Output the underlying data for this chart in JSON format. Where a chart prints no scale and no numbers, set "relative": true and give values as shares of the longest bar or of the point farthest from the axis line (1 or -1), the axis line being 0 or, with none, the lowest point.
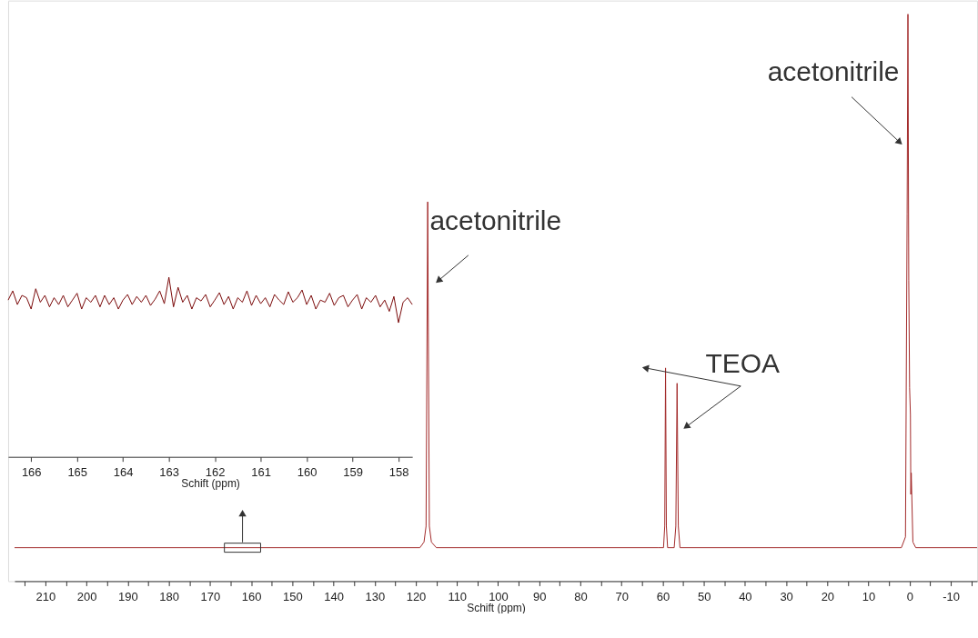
{
  "chart_data": [
    {
      "type": "line",
      "relative": true,
      "xlabel": "Schift (ppm)",
      "color": "#a32a2a",
      "x": [
        217.5,
        119.0,
        118.0,
        117.5,
        117.1,
        116.7,
        116.2,
        115.0,
        61.0,
        59.8,
        59.5,
        59.3,
        59.1,
        58.8,
        57.2,
        56.8,
        56.5,
        56.2,
        55.8,
        2.0,
        1.0,
        0.6,
        0.4,
        0.2,
        0.0,
        -0.2,
        -0.3,
        -0.4,
        -0.8,
        -1.5,
        -16.4
      ],
      "values": [
        0.059,
        0.059,
        0.069,
        0.097,
        0.669,
        0.097,
        0.069,
        0.059,
        0.059,
        0.059,
        0.097,
        0.376,
        0.097,
        0.059,
        0.059,
        0.097,
        0.349,
        0.097,
        0.059,
        0.059,
        0.078,
        0.648,
        1.0,
        0.53,
        0.341,
        0.294,
        0.153,
        0.191,
        0.069,
        0.059,
        0.059
      ],
      "xlim": [
        217.5,
        -16.4
      ],
      "xticks": [
        {
          "value": 215,
          "label": null
        },
        210,
        {
          "value": 205,
          "label": null
        },
        200,
        {
          "value": 195,
          "label": null
        },
        190,
        {
          "value": 185,
          "label": null
        },
        180,
        {
          "value": 175,
          "label": null
        },
        170,
        {
          "value": 165,
          "label": null
        },
        160,
        {
          "value": 155,
          "label": null
        },
        150,
        {
          "value": 145,
          "label": null
        },
        140,
        {
          "value": 135,
          "label": null
        },
        130,
        {
          "value": 125,
          "label": null
        },
        120,
        {
          "value": 115,
          "label": null
        },
        110,
        {
          "value": 105,
          "label": null
        },
        100,
        {
          "value": 95,
          "label": null
        },
        90,
        {
          "value": 85,
          "label": null
        },
        80,
        {
          "value": 75,
          "label": null
        },
        70,
        {
          "value": 65,
          "label": null
        },
        60,
        {
          "value": 55,
          "label": null
        },
        50,
        {
          "value": 45,
          "label": null
        },
        40,
        {
          "value": 35,
          "label": null
        },
        30,
        {
          "value": 25,
          "label": null
        },
        20,
        {
          "value": 15,
          "label": null
        },
        10,
        {
          "value": 5,
          "label": null
        },
        0,
        {
          "value": -5,
          "label": null
        },
        -10,
        {
          "value": -15,
          "label": null
        }
      ],
      "annotations": [
        {
          "text": "acetonitrile",
          "x": 114.5,
          "y": 0.53
        },
        {
          "text": "TEOA",
          "x": 64.2,
          "y": 0.376
        },
        {
          "text": "acetonitrile",
          "x": 2.4,
          "y": 0.774
        }
      ]
    },
    {
      "type": "line",
      "relative": true,
      "xlabel": "Schift (ppm)",
      "color": "#7a0a0a",
      "x": [
        166.5,
        166.4,
        166.3,
        166.2,
        166.1,
        166.0,
        165.9,
        165.8,
        165.7,
        165.6,
        165.5,
        165.4,
        165.3,
        165.2,
        165.1,
        165.0,
        164.9,
        164.8,
        164.7,
        164.6,
        164.5,
        164.4,
        164.3,
        164.2,
        164.1,
        164.0,
        163.9,
        163.8,
        163.7,
        163.6,
        163.5,
        163.4,
        163.3,
        163.2,
        163.1,
        163.0,
        162.9,
        162.8,
        162.7,
        162.6,
        162.5,
        162.4,
        162.3,
        162.2,
        162.1,
        162.0,
        161.9,
        161.8,
        161.7,
        161.6,
        161.5,
        161.4,
        161.3,
        161.2,
        161.1,
        161.0,
        160.9,
        160.8,
        160.7,
        160.6,
        160.5,
        160.4,
        160.3,
        160.2,
        160.1,
        160.0,
        159.9,
        159.8,
        159.7,
        159.6,
        159.5,
        159.4,
        159.3,
        159.2,
        159.1,
        159.0,
        158.9,
        158.8,
        158.7,
        158.6,
        158.5,
        158.4,
        158.3,
        158.2,
        158.1,
        158.0,
        157.9,
        157.8,
        157.7
      ],
      "values": [
        0.873,
        0.924,
        0.848,
        0.899,
        0.886,
        0.823,
        0.936,
        0.861,
        0.899,
        0.835,
        0.886,
        0.848,
        0.899,
        0.835,
        0.873,
        0.911,
        0.823,
        0.886,
        0.861,
        0.899,
        0.835,
        0.899,
        0.848,
        0.886,
        0.823,
        0.873,
        0.904,
        0.848,
        0.893,
        0.861,
        0.899,
        0.843,
        0.878,
        0.924,
        0.853,
        1.0,
        0.835,
        0.944,
        0.861,
        0.899,
        0.823,
        0.886,
        0.868,
        0.904,
        0.835,
        0.873,
        0.914,
        0.848,
        0.893,
        0.823,
        0.886,
        0.861,
        0.924,
        0.843,
        0.899,
        0.853,
        0.886,
        0.835,
        0.904,
        0.873,
        0.848,
        0.919,
        0.861,
        0.886,
        0.929,
        0.848,
        0.899,
        0.823,
        0.873,
        0.861,
        0.911,
        0.843,
        0.886,
        0.899,
        0.835,
        0.873,
        0.904,
        0.823,
        0.886,
        0.861,
        0.899,
        0.835,
        0.873,
        0.81,
        0.893,
        0.747,
        0.861,
        0.886,
        0.848
      ],
      "xlim": [
        166.5,
        157.7
      ],
      "xticks": [
        166,
        165,
        164,
        163,
        162,
        161,
        160,
        159,
        158
      ]
    }
  ]
}
